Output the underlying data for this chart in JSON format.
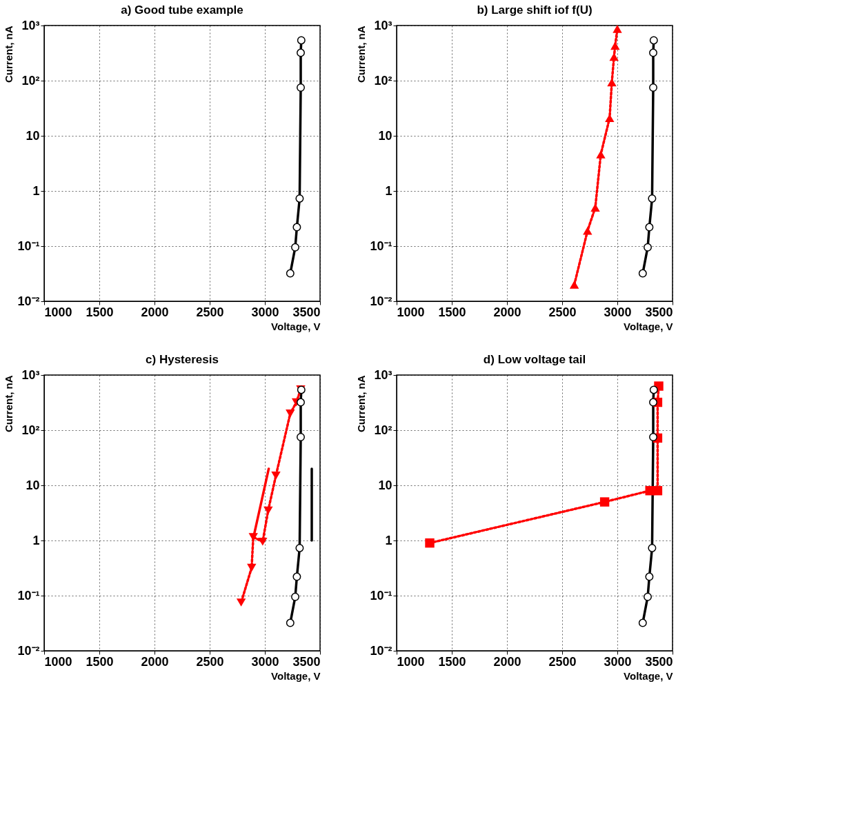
{
  "chart_data": [
    {
      "type": "line",
      "title": "a) Good tube example",
      "xlabel": "Voltage, V",
      "ylabel": "Current, nA",
      "xlim": [
        1000,
        3500
      ],
      "ylim": [
        0.01,
        1000
      ],
      "xticks": [
        1000,
        1500,
        2000,
        2500,
        3000,
        3500
      ],
      "yticks": [
        {
          "value": 0.01,
          "label": "10⁻²"
        },
        {
          "value": 0.1,
          "label": "10⁻¹"
        },
        1,
        10,
        {
          "value": 100,
          "label": "10²"
        },
        {
          "value": 1000,
          "label": "10³"
        }
      ],
      "log": "y",
      "grid": true,
      "series": [
        {
          "color": "#000000",
          "marker": "circle",
          "line_style": "solid",
          "x": [
            3330,
            3325,
            3325,
            3315,
            3290,
            3275,
            3230
          ],
          "values": [
            540,
            320,
            75,
            0.73,
            0.22,
            0.095,
            0.032
          ]
        }
      ]
    },
    {
      "type": "line",
      "title": "b) Large shift iof f(U)",
      "xlabel": "Voltage, V",
      "ylabel": "Current, nA",
      "xlim": [
        1000,
        3500
      ],
      "ylim": [
        0.01,
        1000
      ],
      "xticks": [
        1000,
        1500,
        2000,
        2500,
        3000,
        3500
      ],
      "yticks": [
        {
          "value": 0.01,
          "label": "10⁻²"
        },
        {
          "value": 0.1,
          "label": "10⁻¹"
        },
        1,
        10,
        {
          "value": 100,
          "label": "10²"
        },
        {
          "value": 1000,
          "label": "10³"
        }
      ],
      "log": "y",
      "grid": true,
      "series": [
        {
          "color": "#000000",
          "marker": "circle",
          "line_style": "solid",
          "x": [
            3330,
            3325,
            3325,
            3315,
            3290,
            3275,
            3230
          ],
          "values": [
            540,
            320,
            75,
            0.73,
            0.22,
            0.095,
            0.032
          ]
        },
        {
          "color": "#ff0000",
          "marker": "triangle",
          "line_style": "dotted",
          "x": [
            2610,
            2730,
            2800,
            2850,
            2930,
            2950,
            2970,
            2980,
            3000
          ],
          "values": [
            0.02,
            0.19,
            0.5,
            4.6,
            21,
            93,
            270,
            430,
            870
          ]
        }
      ]
    },
    {
      "type": "line",
      "title": "c) Hysteresis",
      "xlabel": "Voltage, V",
      "ylabel": "Current, nA",
      "xlim": [
        1000,
        3500
      ],
      "ylim": [
        0.01,
        1000
      ],
      "xticks": [
        1000,
        1500,
        2000,
        2500,
        3000,
        3500
      ],
      "yticks": [
        {
          "value": 0.01,
          "label": "10⁻²"
        },
        {
          "value": 0.1,
          "label": "10⁻¹"
        },
        1,
        10,
        {
          "value": 100,
          "label": "10²"
        },
        {
          "value": 1000,
          "label": "10³"
        }
      ],
      "log": "y",
      "grid": true,
      "series": [
        {
          "color": "#000000",
          "marker": "circle",
          "line_style": "solid",
          "x": [
            3330,
            3325,
            3325,
            3315,
            3290,
            3275,
            3230
          ],
          "values": [
            540,
            320,
            75,
            0.73,
            0.22,
            0.095,
            0.032
          ]
        },
        {
          "color": "#ff0000",
          "marker": "triangle-down",
          "line_style": "dotted",
          "x": [
            3325,
            3285,
            3230,
            3100,
            3030,
            2980,
            2895,
            2880,
            2785
          ],
          "values": [
            550,
            320,
            200,
            15,
            3.5,
            0.95,
            1.15,
            0.32,
            0.075
          ]
        },
        {
          "color": "#ff0000",
          "marker": "none",
          "line_style": "solid",
          "x": [
            2895,
            3035
          ],
          "values": [
            1.1,
            20
          ]
        },
        {
          "color": "#000000",
          "marker": "none",
          "line_style": "solid",
          "x": [
            3425,
            3425
          ],
          "values": [
            1,
            20
          ]
        }
      ]
    },
    {
      "type": "line",
      "title": "d) Low voltage tail",
      "xlabel": "Voltage, V",
      "ylabel": "Current, nA",
      "xlim": [
        1000,
        3500
      ],
      "ylim": [
        0.01,
        1000
      ],
      "xticks": [
        1000,
        1500,
        2000,
        2500,
        3000,
        3500
      ],
      "yticks": [
        {
          "value": 0.01,
          "label": "10⁻²"
        },
        {
          "value": 0.1,
          "label": "10⁻¹"
        },
        1,
        10,
        {
          "value": 100,
          "label": "10²"
        },
        {
          "value": 1000,
          "label": "10³"
        }
      ],
      "log": "y",
      "grid": true,
      "series": [
        {
          "color": "#000000",
          "marker": "circle",
          "line_style": "solid",
          "x": [
            3330,
            3325,
            3325,
            3315,
            3290,
            3275,
            3230
          ],
          "values": [
            540,
            320,
            75,
            0.73,
            0.22,
            0.095,
            0.032
          ]
        },
        {
          "color": "#ff0000",
          "marker": "square",
          "line_style": "dotted",
          "x": [
            1300,
            2885,
            3295,
            3365,
            3365,
            3365,
            3375
          ],
          "values": [
            0.9,
            5,
            8,
            8,
            72,
            320,
            630
          ]
        }
      ]
    }
  ]
}
